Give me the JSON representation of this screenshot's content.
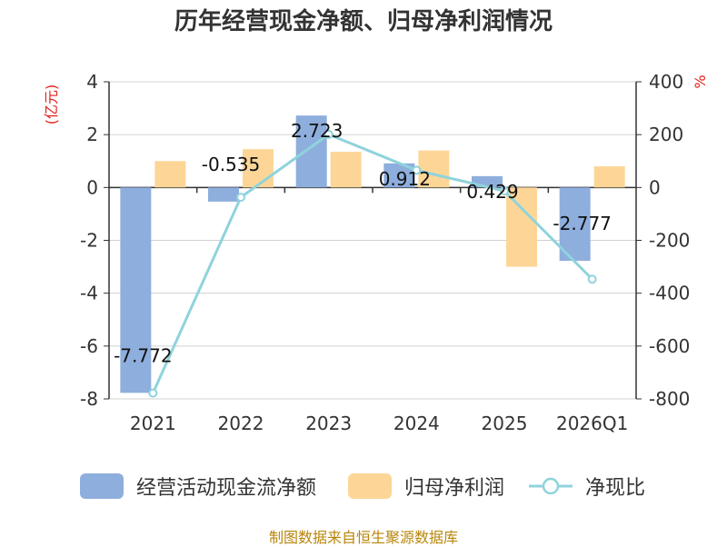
{
  "chart_data": {
    "type": "bar+line",
    "title": "历年经营现金净额、归母净利润情况",
    "categories": [
      "2021",
      "2022",
      "2023",
      "2024",
      "2025",
      "2026Q1"
    ],
    "y_left": {
      "label": "(亿元)",
      "min": -8,
      "max": 4,
      "ticks": [
        4,
        2,
        0,
        -2,
        -4,
        -6,
        -8
      ]
    },
    "y_right": {
      "label": "%",
      "min": -800,
      "max": 400,
      "ticks": [
        400,
        200,
        0,
        -200,
        -400,
        -600,
        -800
      ]
    },
    "series": [
      {
        "name": "经营活动现金流净额",
        "type": "bar",
        "axis": "left",
        "color": "#8eaedd",
        "values": [
          -7.772,
          -0.535,
          2.723,
          0.912,
          0.429,
          -2.777
        ],
        "labels": [
          "-7.772",
          "-0.535",
          "2.723",
          "0.912",
          "0.429",
          "-2.777"
        ]
      },
      {
        "name": "归母净利润",
        "type": "bar",
        "axis": "left",
        "color": "#fdd697",
        "values": [
          1.0,
          1.45,
          1.35,
          1.4,
          -3.0,
          0.8
        ]
      },
      {
        "name": "净现比",
        "type": "line",
        "axis": "right",
        "color": "#8fd3dc",
        "values": [
          -778,
          -37,
          201,
          65,
          -13,
          -347
        ]
      }
    ],
    "legend_position": "bottom",
    "source": "制图数据来自恒生聚源数据库"
  }
}
